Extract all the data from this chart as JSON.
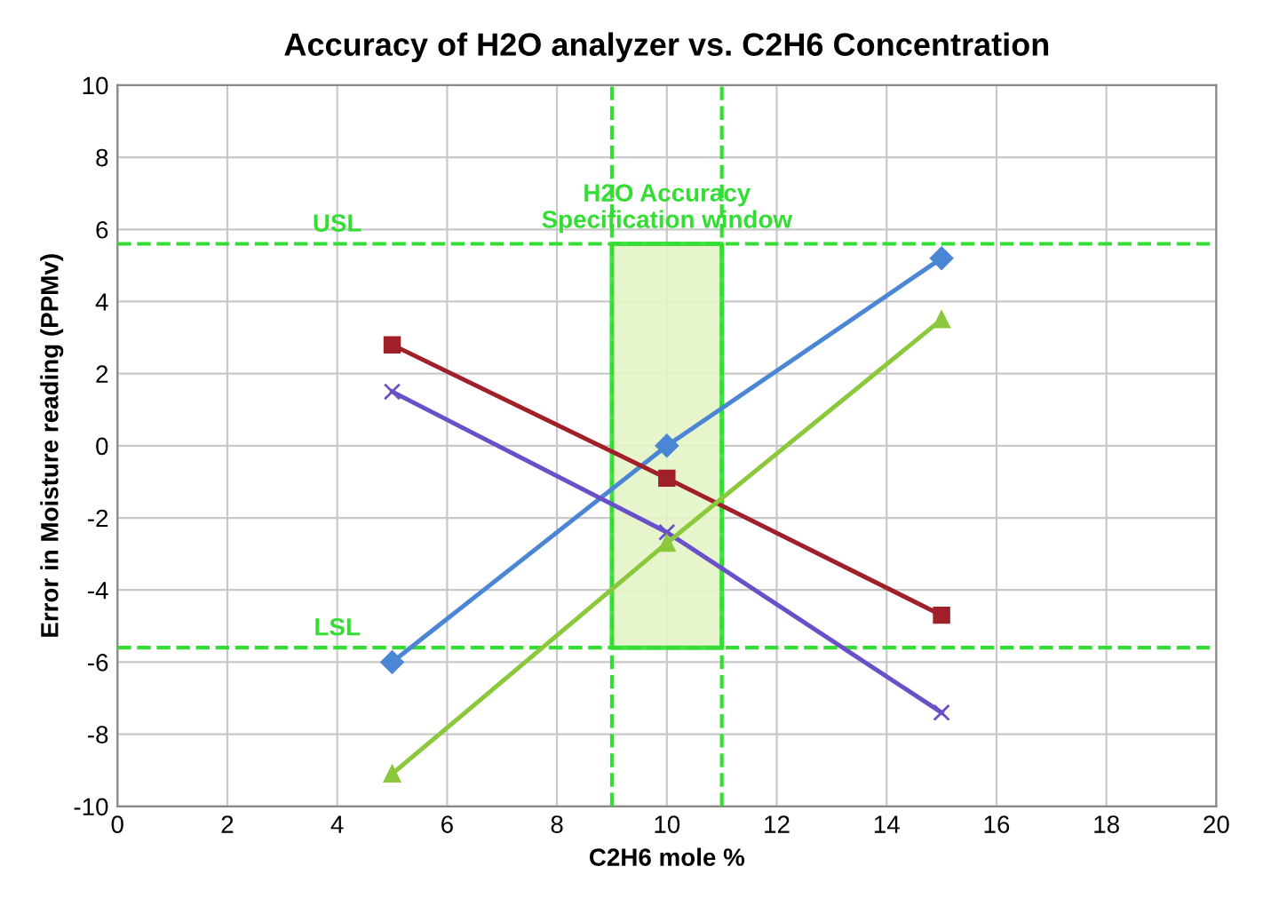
{
  "chart_data": {
    "type": "line",
    "title": "Accuracy of H2O analyzer vs. C2H6 Concentration",
    "xlabel": "C2H6 mole %",
    "ylabel": "Error in Moisture reading (PPMv)",
    "x": [
      5,
      10,
      15
    ],
    "series": [
      {
        "color": "#4a86d4",
        "marker": "diamond",
        "values": [
          -6.0,
          0.0,
          5.2
        ]
      },
      {
        "color": "#a0202a",
        "marker": "square",
        "values": [
          2.8,
          -0.9,
          -4.7
        ]
      },
      {
        "color": "#6a50c8",
        "marker": "cross",
        "values": [
          1.5,
          -2.4,
          -7.4
        ]
      },
      {
        "color": "#8cc83c",
        "marker": "triangle",
        "values": [
          -9.1,
          -2.7,
          3.5
        ]
      }
    ],
    "xlim": [
      0,
      20
    ],
    "xticks": [
      0,
      2,
      4,
      6,
      8,
      10,
      12,
      14,
      16,
      18,
      20
    ],
    "ylim": [
      -10,
      10
    ],
    "yticks": [
      -10,
      -8,
      -6,
      -4,
      -2,
      0,
      2,
      4,
      6,
      8,
      10
    ],
    "ref_lines": [
      {
        "axis": "y",
        "value": 5.6,
        "label": "USL",
        "color": "#33dd33",
        "line_style": "dashed"
      },
      {
        "axis": "y",
        "value": -5.6,
        "label": "LSL",
        "color": "#33dd33",
        "line_style": "dashed"
      },
      {
        "axis": "x",
        "value": 9,
        "color": "#33dd33",
        "line_style": "dashed"
      },
      {
        "axis": "x",
        "value": 11,
        "color": "#33dd33",
        "line_style": "dashed"
      }
    ],
    "bands": [
      {
        "axis": "x",
        "from": 9,
        "to": 11,
        "label": "H2O Accuracy\nSpecification window",
        "color": "#33dd33"
      }
    ],
    "grid": true,
    "legend": false,
    "line_style": "solid"
  }
}
